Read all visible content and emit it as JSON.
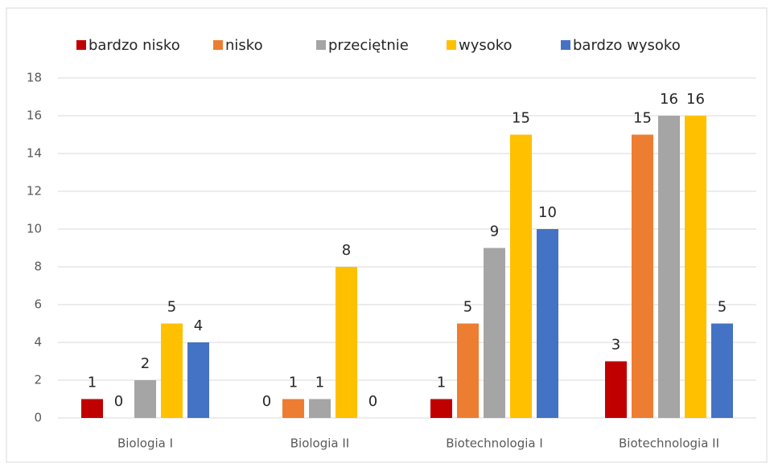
{
  "chart_data": {
    "type": "bar",
    "categories": [
      "Biologia I",
      "Biologia II",
      "Biotechnologia I",
      "Biotechnologia II"
    ],
    "series": [
      {
        "name": "bardzo nisko",
        "color": "#c00000",
        "values": [
          1,
          0,
          1,
          3
        ]
      },
      {
        "name": "nisko",
        "color": "#ed7d31",
        "values": [
          0,
          1,
          5,
          15
        ]
      },
      {
        "name": "przeciętnie",
        "color": "#a5a5a5",
        "values": [
          2,
          1,
          9,
          16
        ]
      },
      {
        "name": "wysoko",
        "color": "#ffc000",
        "values": [
          5,
          8,
          15,
          16
        ]
      },
      {
        "name": "bardzo wysoko",
        "color": "#4472c4",
        "values": [
          4,
          0,
          10,
          5
        ]
      }
    ],
    "ylim": [
      0,
      18
    ],
    "yticks": [
      0,
      2,
      4,
      6,
      8,
      10,
      12,
      14,
      16,
      18
    ],
    "grid": true,
    "legend": "top"
  }
}
